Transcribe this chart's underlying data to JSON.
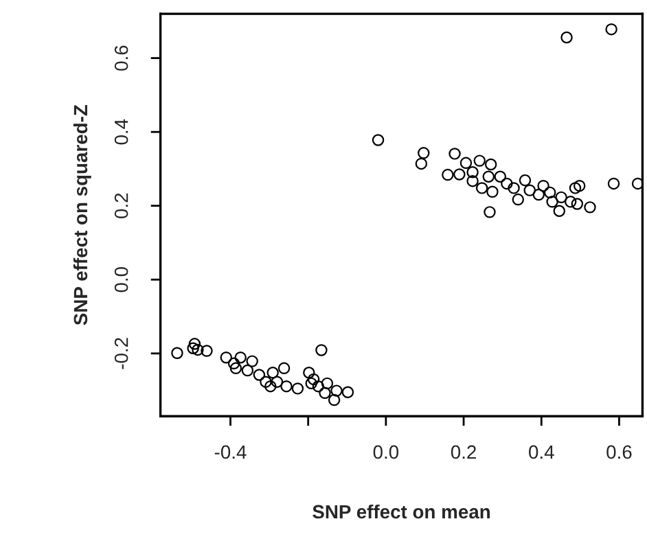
{
  "chart_data": {
    "type": "scatter",
    "xlabel": "SNP effect on mean",
    "ylabel": "SNP effect on squared-Z",
    "xlim": [
      -0.58,
      0.66
    ],
    "ylim": [
      -0.37,
      0.72
    ],
    "xticks": [
      -0.4,
      {
        "value": -0.2,
        "label": null
      },
      {
        "value": 0,
        "label": "0.0"
      },
      0.2,
      0.4,
      0.6
    ],
    "yticks": [
      -0.2,
      {
        "value": 0,
        "label": "0.0"
      },
      0.2,
      0.4,
      0.6
    ],
    "marker": "circle",
    "grid": false,
    "legend": false,
    "series": [
      {
        "color": "#000000",
        "x": [
          -0.537,
          -0.492,
          -0.484,
          -0.461,
          -0.496,
          -0.411,
          -0.391,
          -0.374,
          -0.386,
          -0.344,
          -0.356,
          -0.326,
          -0.309,
          -0.291,
          -0.262,
          -0.28,
          -0.256,
          -0.227,
          -0.297,
          -0.198,
          -0.186,
          -0.174,
          -0.166,
          -0.157,
          -0.133,
          -0.127,
          -0.098,
          -0.192,
          -0.151,
          -0.02,
          0.097,
          0.091,
          0.159,
          0.177,
          0.206,
          0.223,
          0.241,
          0.27,
          0.264,
          0.247,
          0.274,
          0.267,
          0.294,
          0.311,
          0.329,
          0.34,
          0.358,
          0.37,
          0.393,
          0.405,
          0.422,
          0.428,
          0.451,
          0.446,
          0.475,
          0.487,
          0.498,
          0.492,
          0.525,
          0.223,
          0.189,
          0.586,
          0.648,
          0.465,
          0.58
        ],
        "values": [
          -0.199,
          -0.174,
          -0.19,
          -0.193,
          -0.186,
          -0.211,
          -0.227,
          -0.211,
          -0.24,
          -0.221,
          -0.246,
          -0.258,
          -0.277,
          -0.252,
          -0.24,
          -0.277,
          -0.289,
          -0.295,
          -0.289,
          -0.252,
          -0.27,
          -0.289,
          -0.191,
          -0.307,
          -0.326,
          -0.301,
          -0.305,
          -0.281,
          -0.281,
          0.378,
          0.343,
          0.314,
          0.284,
          0.341,
          0.316,
          0.291,
          0.322,
          0.312,
          0.279,
          0.248,
          0.238,
          0.183,
          0.279,
          0.26,
          0.248,
          0.217,
          0.269,
          0.242,
          0.23,
          0.254,
          0.236,
          0.211,
          0.223,
          0.186,
          0.211,
          0.248,
          0.254,
          0.205,
          0.196,
          0.267,
          0.285,
          0.26,
          0.26,
          0.656,
          0.678
        ]
      }
    ]
  }
}
